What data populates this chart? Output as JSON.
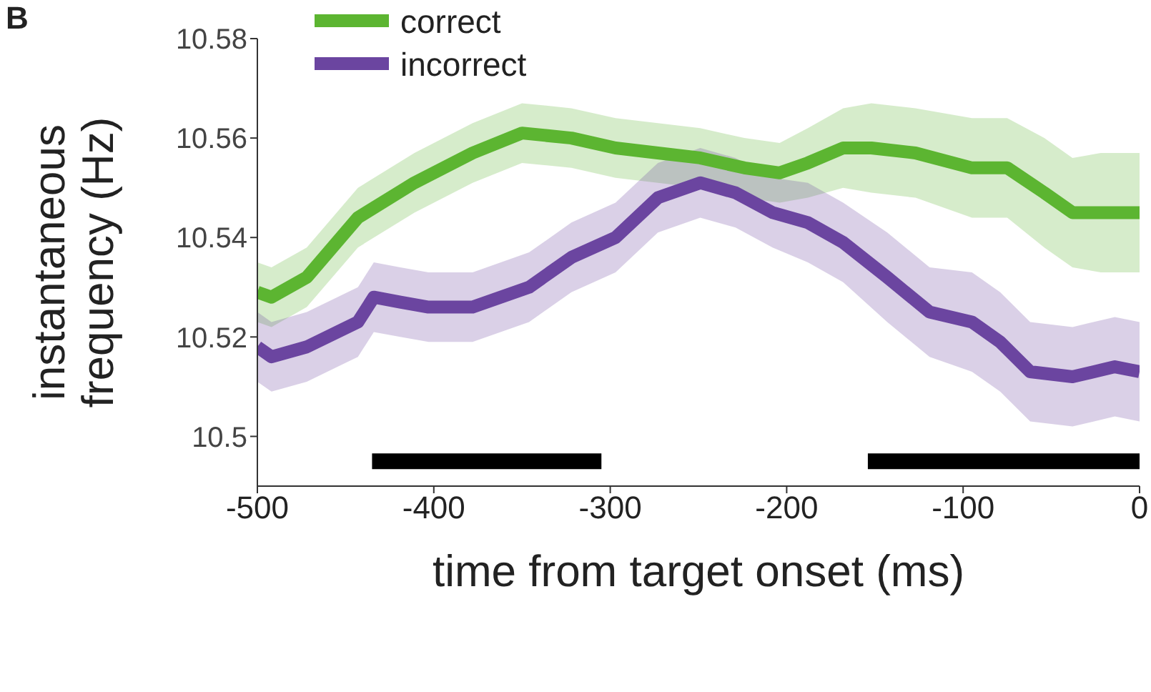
{
  "chart_data": {
    "type": "line",
    "xlabel": "time from target onset (ms)",
    "ylabel": "instantaneous frequency (Hz)",
    "annotations": [
      "B"
    ],
    "xlim": [
      -500,
      0
    ],
    "xticks": [
      -500,
      -400,
      -300,
      -200,
      -100,
      0
    ],
    "ylim": [
      10.49,
      10.58
    ],
    "yticks": [
      10.58,
      10.56,
      10.54,
      10.52,
      10.5
    ],
    "legend": "top left",
    "grid": false,
    "marker": "none",
    "line_style": "solid",
    "series": [
      {
        "name": "correct",
        "color": "#5cb531",
        "x": [
          -500,
          -492,
          -472,
          -443,
          -411,
          -378,
          -350,
          -322,
          -297,
          -273,
          -249,
          -224,
          -204,
          -188,
          -168,
          -152,
          -127,
          -95,
          -75,
          -54,
          -38,
          -22,
          0
        ],
        "values": [
          10.529,
          10.528,
          10.532,
          10.544,
          10.551,
          10.557,
          10.561,
          10.56,
          10.558,
          10.557,
          10.556,
          10.554,
          10.553,
          10.555,
          10.558,
          10.558,
          10.557,
          10.554,
          10.554,
          10.549,
          10.545,
          10.545,
          10.545
        ],
        "lower": [
          10.523,
          10.522,
          10.526,
          10.538,
          10.545,
          10.551,
          10.555,
          10.554,
          10.552,
          10.551,
          10.55,
          10.548,
          10.547,
          10.548,
          10.55,
          10.549,
          10.548,
          10.544,
          10.544,
          10.538,
          10.534,
          10.533,
          10.533
        ],
        "upper": [
          10.535,
          10.534,
          10.538,
          10.55,
          10.557,
          10.563,
          10.567,
          10.566,
          10.564,
          10.563,
          10.562,
          10.56,
          10.559,
          10.562,
          10.566,
          10.567,
          10.566,
          10.564,
          10.564,
          10.56,
          10.556,
          10.557,
          10.557
        ]
      },
      {
        "name": "incorrect",
        "color": "#6b45a0",
        "x": [
          -500,
          -492,
          -472,
          -443,
          -434,
          -419,
          -403,
          -378,
          -346,
          -322,
          -297,
          -273,
          -249,
          -229,
          -208,
          -188,
          -168,
          -143,
          -119,
          -95,
          -79,
          -62,
          -38,
          -14,
          0
        ],
        "values": [
          10.518,
          10.516,
          10.518,
          10.523,
          10.528,
          10.527,
          10.526,
          10.526,
          10.53,
          10.536,
          10.54,
          10.548,
          10.551,
          10.549,
          10.545,
          10.543,
          10.539,
          10.532,
          10.525,
          10.523,
          10.519,
          10.513,
          10.512,
          10.514,
          10.513
        ],
        "lower": [
          10.511,
          10.509,
          10.511,
          10.516,
          10.521,
          10.52,
          10.519,
          10.519,
          10.523,
          10.529,
          10.533,
          10.541,
          10.544,
          10.542,
          10.538,
          10.535,
          10.531,
          10.523,
          10.516,
          10.513,
          10.509,
          10.503,
          10.502,
          10.504,
          10.503
        ],
        "upper": [
          10.525,
          10.523,
          10.525,
          10.53,
          10.535,
          10.534,
          10.533,
          10.533,
          10.537,
          10.543,
          10.547,
          10.555,
          10.558,
          10.556,
          10.552,
          10.551,
          10.547,
          10.541,
          10.534,
          10.533,
          10.529,
          10.523,
          10.522,
          10.524,
          10.523
        ]
      },
      {
        "color": "#000000",
        "x": [
          -435,
          -305
        ],
        "values": [
          10.495,
          10.495
        ]
      },
      {
        "color": "#000000",
        "x": [
          -154,
          0
        ],
        "values": [
          10.495,
          10.495
        ]
      }
    ]
  }
}
